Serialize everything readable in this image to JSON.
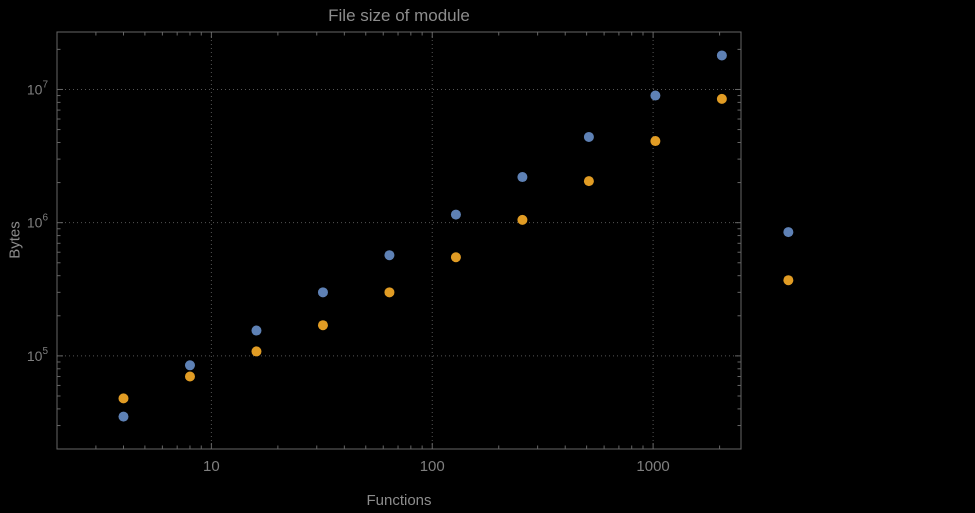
{
  "colors": {
    "background": "#000000",
    "frame": "#666666",
    "grid": "#555555",
    "text": "#8c8c8c",
    "tick_text": "#7f7f7f",
    "series_blue": "#5e81b5",
    "series_orange": "#e19c24"
  },
  "chart_data": {
    "type": "scatter",
    "title": "File size of module",
    "xlabel": "Functions",
    "ylabel": "Bytes",
    "xscale": "log",
    "yscale": "log",
    "xlim": [
      2,
      2500
    ],
    "ylim": [
      20000,
      27000000
    ],
    "grid": "dotted-at-major-ticks",
    "legend": "none",
    "x": [
      4,
      8,
      16,
      32,
      64,
      128,
      256,
      512,
      1024,
      2048,
      4096
    ],
    "series": [
      {
        "name": "blue-series",
        "color": "#5e81b5",
        "values": [
          35000,
          85000,
          155000,
          300000,
          570000,
          1150000,
          2200000,
          4400000,
          9000000,
          18000000,
          850000
        ]
      },
      {
        "name": "orange-series",
        "color": "#e19c24",
        "values": [
          48000,
          70000,
          108000,
          170000,
          300000,
          550000,
          1050000,
          2050000,
          4100000,
          8500000,
          370000
        ]
      }
    ],
    "x_ticks": [
      {
        "value": 10,
        "label": "10"
      },
      {
        "value": 100,
        "label": "100"
      },
      {
        "value": 1000,
        "label": "1000"
      }
    ],
    "y_ticks": [
      {
        "value": 100000,
        "base": "10",
        "exp": "5"
      },
      {
        "value": 1000000,
        "base": "10",
        "exp": "6"
      },
      {
        "value": 10000000,
        "base": "10",
        "exp": "7"
      }
    ]
  }
}
